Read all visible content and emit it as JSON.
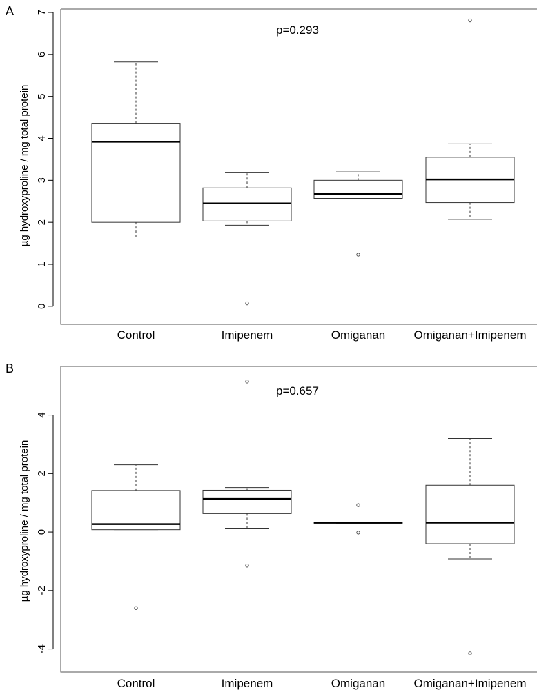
{
  "chart_data": [
    {
      "type": "box",
      "panel": "A",
      "ylabel": "µg hydroxyproline / mg total protein",
      "annotation": "p=0.293",
      "categories": [
        "Control",
        "Imipenem",
        "Omiganan",
        "Omiganan+Imipenem"
      ],
      "ylim": [
        -0.2,
        7.0
      ],
      "yticks": [
        0,
        1,
        2,
        3,
        4,
        5,
        6,
        7
      ],
      "boxes": [
        {
          "whisker_low": 1.6,
          "q1": 2.0,
          "median": 3.92,
          "q3": 4.36,
          "whisker_high": 5.82,
          "outliers": []
        },
        {
          "whisker_low": 1.93,
          "q1": 2.03,
          "median": 2.45,
          "q3": 2.82,
          "whisker_high": 3.18,
          "outliers": [
            0.07
          ]
        },
        {
          "whisker_low": 2.57,
          "q1": 2.57,
          "median": 2.68,
          "q3": 3.0,
          "whisker_high": 3.2,
          "outliers": [
            1.23
          ]
        },
        {
          "whisker_low": 2.07,
          "q1": 2.47,
          "median": 3.02,
          "q3": 3.55,
          "whisker_high": 3.87,
          "outliers": [
            6.81
          ]
        }
      ]
    },
    {
      "type": "box",
      "panel": "B",
      "ylabel": "µg hydroxyproline / mg total protein",
      "annotation": "p=0.657",
      "categories": [
        "Control",
        "Imipenem",
        "Omiganan",
        "Omiganan+Imipenem"
      ],
      "ylim": [
        -4.6,
        5.5
      ],
      "yticks": [
        -4,
        -2,
        0,
        2,
        4
      ],
      "boxes": [
        {
          "whisker_low": 0.08,
          "q1": 0.08,
          "median": 0.27,
          "q3": 1.42,
          "whisker_high": 2.3,
          "outliers": [
            -2.6
          ]
        },
        {
          "whisker_low": 0.13,
          "q1": 0.63,
          "median": 1.13,
          "q3": 1.43,
          "whisker_high": 1.52,
          "outliers": [
            5.15,
            -1.15
          ]
        },
        {
          "whisker_low": 0.3,
          "q1": 0.3,
          "median": 0.32,
          "q3": 0.34,
          "whisker_high": 0.34,
          "outliers": [
            0.92,
            -0.02
          ]
        },
        {
          "whisker_low": -0.92,
          "q1": -0.4,
          "median": 0.32,
          "q3": 1.6,
          "whisker_high": 3.2,
          "outliers": [
            -4.15
          ]
        }
      ]
    }
  ]
}
